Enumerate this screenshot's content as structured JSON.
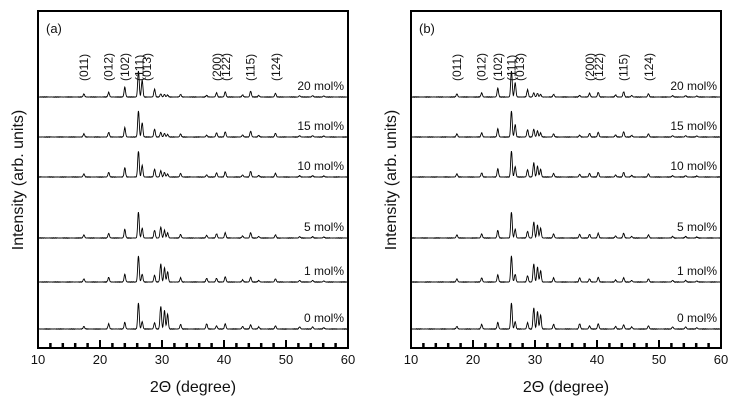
{
  "chart_data": [
    {
      "type": "line",
      "panel_label": "(a)",
      "xlabel": "2Θ (degree)",
      "ylabel": "Intensity (arb. units)",
      "xlim": [
        10,
        60
      ],
      "x_ticks": [
        10,
        20,
        30,
        40,
        50,
        60
      ],
      "y_tick_labels_shown": false,
      "grid": false,
      "annotations": [
        {
          "text": "(011)",
          "x": 17.4
        },
        {
          "text": "(012)",
          "x": 21.4
        },
        {
          "text": "(102)",
          "x": 24.0
        },
        {
          "text": "(111)",
          "x": 26.4
        },
        {
          "text": "(013)",
          "x": 27.6
        },
        {
          "text": "(200)",
          "x": 38.9
        },
        {
          "text": "(122)",
          "x": 40.3
        },
        {
          "text": "(115)",
          "x": 44.3
        },
        {
          "text": "(124)",
          "x": 48.4
        }
      ],
      "peaks_2theta": [
        17.4,
        21.4,
        24.0,
        26.2,
        26.8,
        28.8,
        29.8,
        30.4,
        30.9,
        33.0,
        37.2,
        38.8,
        40.2,
        43.0,
        44.3,
        45.6,
        48.3,
        52.2,
        54.3,
        56.1
      ],
      "series": [
        {
          "name": "20 mol%",
          "peak_heights": [
            0.12,
            0.18,
            0.38,
            1.0,
            0.65,
            0.3,
            0.12,
            0.1,
            0.08,
            0.1,
            0.06,
            0.16,
            0.2,
            0.08,
            0.22,
            0.06,
            0.14,
            0.05,
            0.05,
            0.04
          ]
        },
        {
          "name": "15 mol%",
          "peak_heights": [
            0.12,
            0.18,
            0.36,
            1.0,
            0.55,
            0.3,
            0.18,
            0.14,
            0.1,
            0.12,
            0.07,
            0.16,
            0.2,
            0.08,
            0.22,
            0.06,
            0.14,
            0.05,
            0.05,
            0.04
          ]
        },
        {
          "name": "10 mol%",
          "peak_heights": [
            0.12,
            0.18,
            0.36,
            1.0,
            0.45,
            0.3,
            0.24,
            0.18,
            0.12,
            0.14,
            0.08,
            0.16,
            0.2,
            0.08,
            0.22,
            0.06,
            0.14,
            0.05,
            0.05,
            0.04
          ]
        },
        {
          "name": "5 mol%",
          "peak_heights": [
            0.12,
            0.18,
            0.34,
            1.0,
            0.38,
            0.3,
            0.42,
            0.3,
            0.2,
            0.14,
            0.1,
            0.16,
            0.2,
            0.08,
            0.2,
            0.06,
            0.12,
            0.05,
            0.05,
            0.04
          ]
        },
        {
          "name": "1 mol%",
          "peak_heights": [
            0.12,
            0.18,
            0.3,
            1.0,
            0.3,
            0.26,
            0.7,
            0.55,
            0.4,
            0.16,
            0.14,
            0.14,
            0.2,
            0.08,
            0.18,
            0.06,
            0.12,
            0.06,
            0.06,
            0.04
          ]
        },
        {
          "name": "0 mol%",
          "peak_heights": [
            0.1,
            0.2,
            0.26,
            1.0,
            0.28,
            0.24,
            0.88,
            0.72,
            0.58,
            0.18,
            0.2,
            0.12,
            0.2,
            0.1,
            0.16,
            0.08,
            0.12,
            0.08,
            0.08,
            0.05
          ]
        }
      ]
    },
    {
      "type": "line",
      "panel_label": "(b)",
      "xlabel": "2Θ (degree)",
      "ylabel": "Intensity (arb. units)",
      "xlim": [
        10,
        60
      ],
      "x_ticks": [
        10,
        20,
        30,
        40,
        50,
        60
      ],
      "y_tick_labels_shown": false,
      "grid": false,
      "annotations": [
        {
          "text": "(011)",
          "x": 17.4
        },
        {
          "text": "(012)",
          "x": 21.4
        },
        {
          "text": "(102)",
          "x": 24.0
        },
        {
          "text": "(111)",
          "x": 26.2
        },
        {
          "text": "(013)",
          "x": 27.6
        },
        {
          "text": "(200)",
          "x": 38.9
        },
        {
          "text": "(122)",
          "x": 40.3
        },
        {
          "text": "(115)",
          "x": 44.3
        },
        {
          "text": "(124)",
          "x": 48.4
        }
      ],
      "peaks_2theta": [
        17.4,
        21.4,
        24.0,
        26.2,
        26.8,
        28.8,
        29.8,
        30.4,
        30.9,
        33.0,
        37.2,
        38.8,
        40.2,
        43.0,
        44.3,
        45.6,
        48.3,
        52.2,
        54.3,
        56.1
      ],
      "series": [
        {
          "name": "20 mol%",
          "peak_heights": [
            0.12,
            0.16,
            0.34,
            1.0,
            0.55,
            0.28,
            0.16,
            0.14,
            0.1,
            0.1,
            0.06,
            0.14,
            0.18,
            0.08,
            0.2,
            0.06,
            0.12,
            0.05,
            0.05,
            0.04
          ]
        },
        {
          "name": "15 mol%",
          "peak_heights": [
            0.12,
            0.16,
            0.32,
            1.0,
            0.48,
            0.28,
            0.3,
            0.24,
            0.16,
            0.12,
            0.07,
            0.14,
            0.18,
            0.08,
            0.2,
            0.06,
            0.12,
            0.05,
            0.05,
            0.04
          ]
        },
        {
          "name": "10 mol%",
          "peak_heights": [
            0.12,
            0.16,
            0.32,
            1.0,
            0.4,
            0.28,
            0.55,
            0.42,
            0.3,
            0.14,
            0.1,
            0.14,
            0.18,
            0.08,
            0.18,
            0.06,
            0.12,
            0.05,
            0.05,
            0.04
          ]
        },
        {
          "name": "5 mol%",
          "peak_heights": [
            0.12,
            0.16,
            0.3,
            1.0,
            0.34,
            0.26,
            0.62,
            0.5,
            0.38,
            0.16,
            0.14,
            0.14,
            0.18,
            0.08,
            0.18,
            0.06,
            0.12,
            0.06,
            0.06,
            0.04
          ]
        },
        {
          "name": "1 mol%",
          "peak_heights": [
            0.12,
            0.16,
            0.28,
            1.0,
            0.3,
            0.24,
            0.7,
            0.58,
            0.44,
            0.16,
            0.16,
            0.12,
            0.18,
            0.08,
            0.16,
            0.06,
            0.12,
            0.06,
            0.06,
            0.04
          ]
        },
        {
          "name": "0 mol%",
          "peak_heights": [
            0.1,
            0.18,
            0.26,
            1.0,
            0.28,
            0.24,
            0.82,
            0.68,
            0.55,
            0.18,
            0.2,
            0.12,
            0.2,
            0.1,
            0.16,
            0.08,
            0.12,
            0.08,
            0.08,
            0.05
          ]
        }
      ]
    }
  ]
}
